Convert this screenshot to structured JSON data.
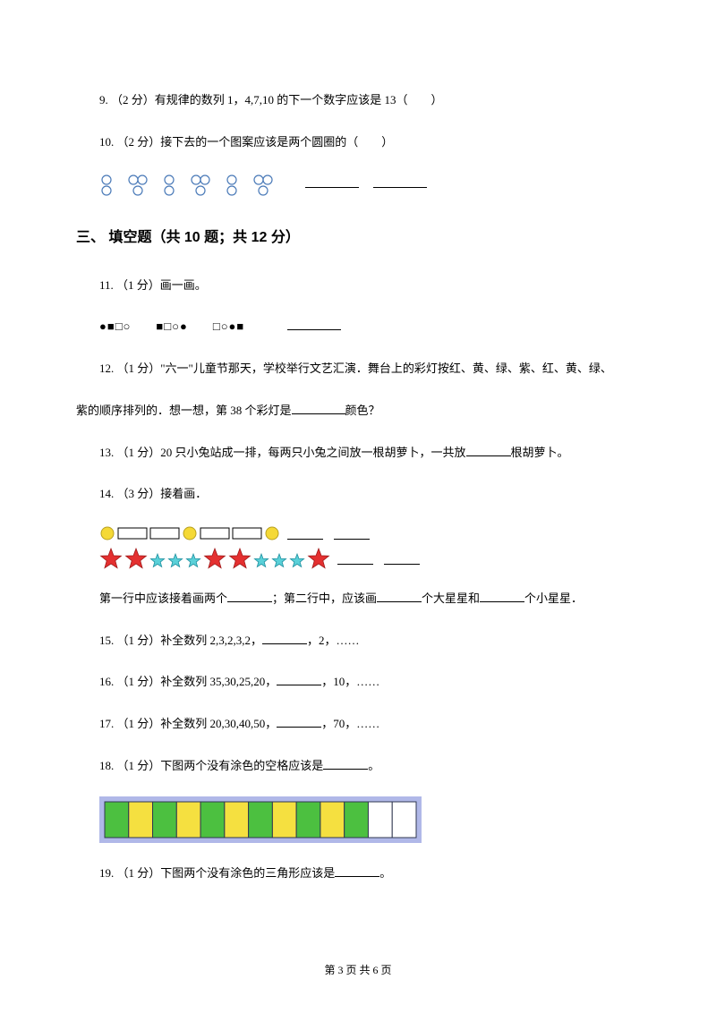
{
  "q9": "9. （2 分）有规律的数列 1，4,7,10 的下一个数字应该是 13（　　）",
  "q10": "10. （2 分）接下去的一个图案应该是两个圆圈的（　　）",
  "section3": "三、 填空题（共 10 题；共 12 分）",
  "q11": "11. （1 分）画一画。",
  "q12": "12. （1 分）\"六一\"儿童节那天，学校举行文艺汇演．舞台上的彩灯按红、黄、绿、紫、红、黄、绿、紫的顺序排列的．想一想，第 38 个彩灯是________颜色？",
  "q12_a": "12. （1 分）\"六一\"儿童节那天，学校举行文艺汇演．舞台上的彩灯按红、黄、绿、紫、红、黄、绿、",
  "q12_b": "紫的顺序排列的．想一想，第 38 个彩灯是",
  "q12_c": "颜色？",
  "q13_a": "13. （1 分）20 只小兔站成一排，每两只小兔之间放一根胡萝卜，一共放",
  "q13_b": "根胡萝卜。",
  "q14": "14. （3 分）接着画．",
  "q14_line_a": "第一行中应该接着画两个",
  "q14_line_b": "；第二行中，应该画",
  "q14_line_c": "个大星星和",
  "q14_line_d": "个小星星．",
  "q15_a": "15. （1 分）补全数列 2,3,2,3,2，",
  "q15_b": "，2，……",
  "q16_a": "16. （1 分）补全数列 35,30,25,20，",
  "q16_b": "，10，……",
  "q17_a": "17. （1 分）补全数列 20,30,40,50，",
  "q17_b": "，70，……",
  "q18_a": "18. （1 分）下图两个没有涂色的空格应该是",
  "q18_b": "。",
  "q19_a": "19. （1 分）下图两个没有涂色的三角形应该是",
  "q19_b": "。",
  "footer": "第 3 页 共 6 页",
  "circles": {
    "stroke": "#4a7ab8",
    "r": 5
  },
  "pattern_symbols": [
    "●■□○",
    "■□○●",
    "□○●■"
  ],
  "row1_shapes": {
    "circle_fill": "#f5d936",
    "circle_stroke": "#b8a020",
    "rect_stroke": "#000000"
  },
  "stars": {
    "big_fill": "#e43030",
    "big_stroke": "#a01818",
    "small_fill": "#5ad0d8",
    "small_stroke": "#2090a0"
  },
  "colorstrip": {
    "bg": "#b0b8e8",
    "border": "#303850",
    "cells": [
      "#4cc040",
      "#f5e040",
      "#4cc040",
      "#f5e040",
      "#4cc040",
      "#f5e040",
      "#4cc040",
      "#f5e040",
      "#4cc040",
      "#f5e040",
      "#4cc040",
      "#ffffff",
      "#ffffff"
    ]
  }
}
